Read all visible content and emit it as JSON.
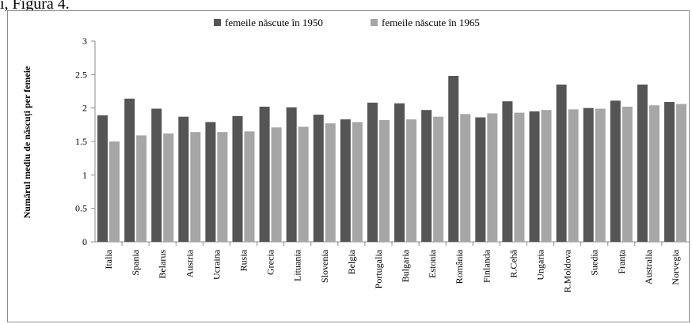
{
  "caption_fragment": "ı, Figura 4.",
  "chart_data": {
    "type": "bar",
    "ylabel": "Numărul mediu de născuți per femeie",
    "xlabel": "",
    "ylim": [
      0,
      3
    ],
    "yticks": [
      "0",
      "0.5",
      "1",
      "1.5",
      "2",
      "2.5",
      "3"
    ],
    "legend_position": "top",
    "categories": [
      "Italia",
      "Spania",
      "Belarus",
      "Austria",
      "Ucraina",
      "Rusia",
      "Grecia",
      "Lituania",
      "Slovenia",
      "Belgia",
      "Portugalia",
      "Bulgaria",
      "Estonia",
      "România",
      "Finlanda",
      "R.Cehă",
      "Ungaria",
      "R.Moldova",
      "Suedia",
      "Franța",
      "Australia",
      "Norvegia"
    ],
    "series": [
      {
        "name": "femeile născute în 1950",
        "color": "#555555",
        "values": [
          1.89,
          2.14,
          1.99,
          1.87,
          1.79,
          1.88,
          2.02,
          2.01,
          1.9,
          1.83,
          2.08,
          2.07,
          1.97,
          2.48,
          1.86,
          2.1,
          1.95,
          2.35,
          2.0,
          2.11,
          2.35,
          2.09
        ]
      },
      {
        "name": "femeile născute în 1965",
        "color": "#a6a6a6",
        "values": [
          1.5,
          1.59,
          1.62,
          1.64,
          1.64,
          1.65,
          1.71,
          1.72,
          1.77,
          1.79,
          1.82,
          1.83,
          1.87,
          1.91,
          1.92,
          1.93,
          1.97,
          1.98,
          1.99,
          2.02,
          2.04,
          2.06
        ]
      }
    ],
    "grid": false
  }
}
